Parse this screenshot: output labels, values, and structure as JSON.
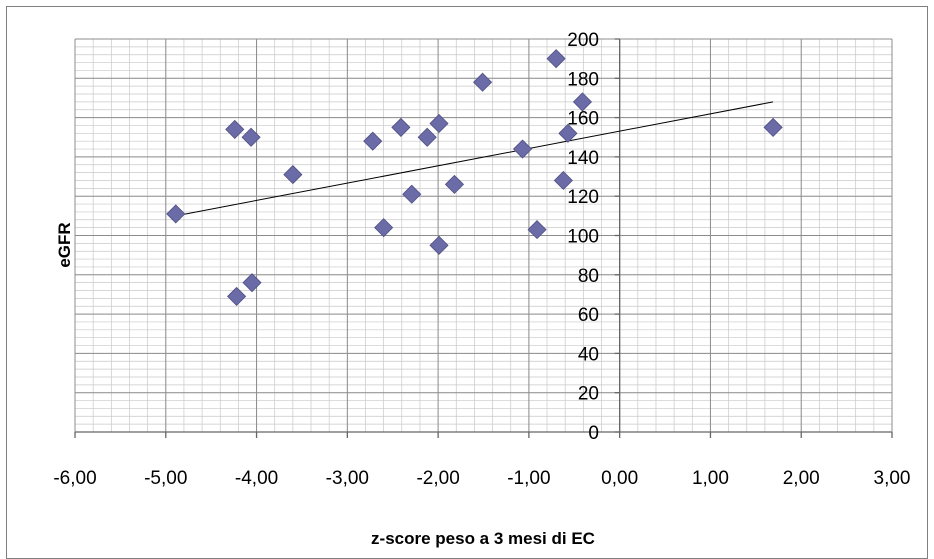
{
  "chart_data": {
    "type": "scatter",
    "xlabel": "z-score peso a 3 mesi di EC",
    "ylabel": "eGFR",
    "xlim": [
      -6,
      3
    ],
    "ylim": [
      0,
      200
    ],
    "x_ticks": [
      -6,
      -5,
      -4,
      -3,
      -2,
      -1,
      0,
      1,
      2,
      3
    ],
    "x_tick_labels": [
      "-6,00",
      "-5,00",
      "-4,00",
      "-3,00",
      "-2,00",
      "-1,00",
      "0,00",
      "1,00",
      "2,00",
      "3,00"
    ],
    "y_ticks": [
      0,
      20,
      40,
      60,
      80,
      100,
      120,
      140,
      160,
      180,
      200
    ],
    "y_tick_labels": [
      "0",
      "20",
      "40",
      "60",
      "80",
      "100",
      "120",
      "140",
      "160",
      "180",
      "200"
    ],
    "grid": true,
    "marker": "diamond",
    "marker_color": "#6b6ba8",
    "points": [
      {
        "x": -4.89,
        "y": 111
      },
      {
        "x": -4.24,
        "y": 154
      },
      {
        "x": -4.06,
        "y": 150
      },
      {
        "x": -4.22,
        "y": 69
      },
      {
        "x": -4.05,
        "y": 76
      },
      {
        "x": -3.6,
        "y": 131
      },
      {
        "x": -2.72,
        "y": 148
      },
      {
        "x": -2.41,
        "y": 155
      },
      {
        "x": -2.6,
        "y": 104
      },
      {
        "x": -2.29,
        "y": 121
      },
      {
        "x": -2.12,
        "y": 150
      },
      {
        "x": -1.99,
        "y": 157
      },
      {
        "x": -1.82,
        "y": 126
      },
      {
        "x": -1.99,
        "y": 95
      },
      {
        "x": -1.51,
        "y": 178
      },
      {
        "x": -1.07,
        "y": 144
      },
      {
        "x": -0.91,
        "y": 103
      },
      {
        "x": -0.7,
        "y": 190
      },
      {
        "x": -0.62,
        "y": 128
      },
      {
        "x": -0.57,
        "y": 152
      },
      {
        "x": -0.41,
        "y": 168
      },
      {
        "x": 1.69,
        "y": 155
      }
    ],
    "trendline": {
      "type": "linear",
      "x": [
        -4.89,
        1.69
      ],
      "y": [
        110,
        168
      ]
    }
  }
}
